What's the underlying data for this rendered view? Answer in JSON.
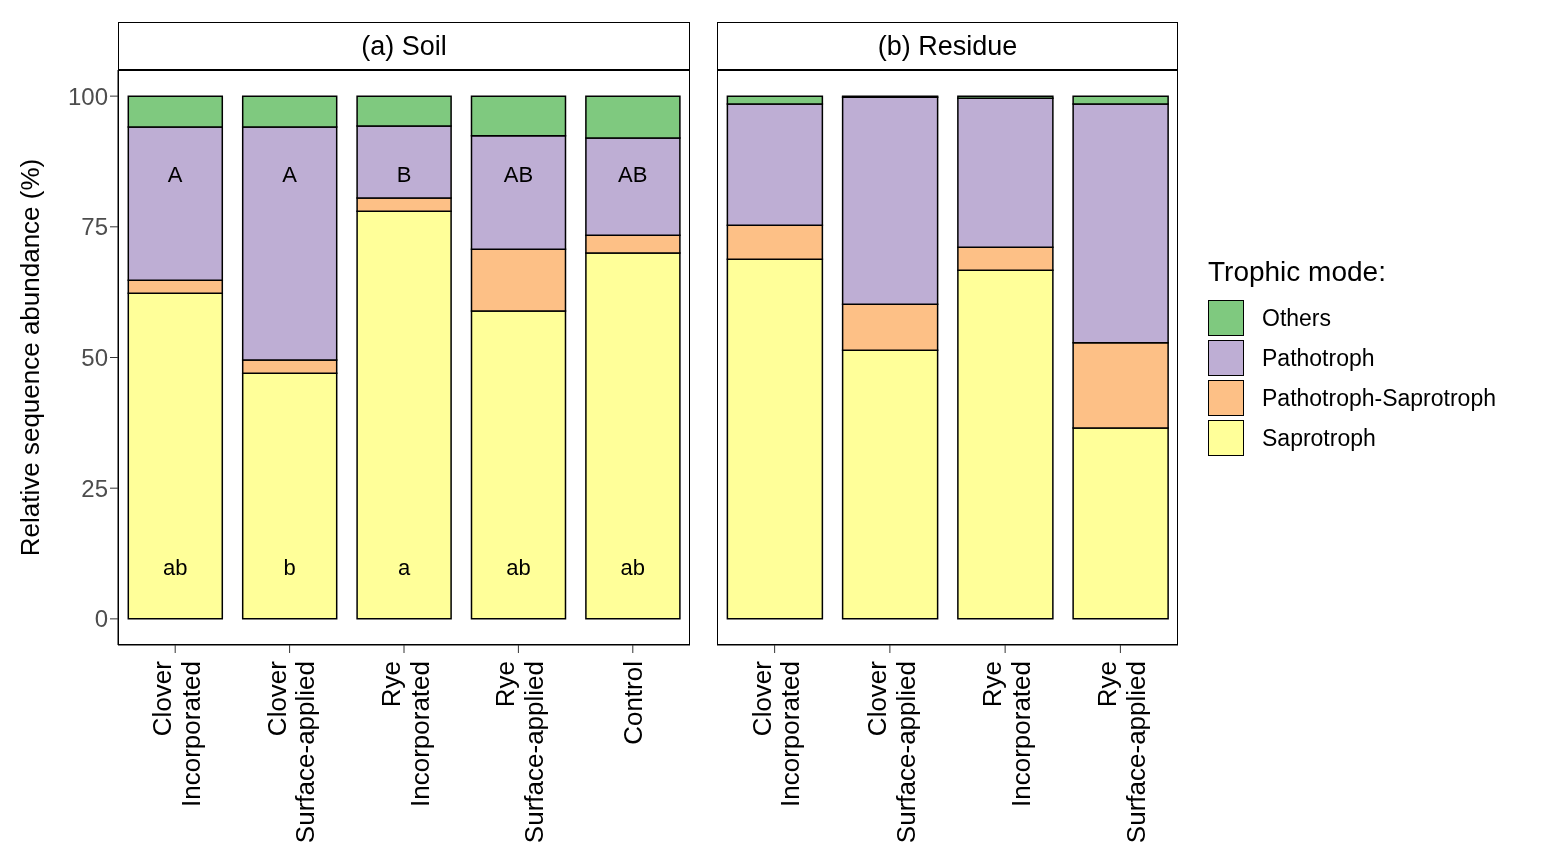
{
  "chart_data": [
    {
      "type": "bar",
      "title": "(a) Soil",
      "ylabel": "Relative sequence abundance (%)",
      "stacked": true,
      "grid": false,
      "legend": "right",
      "legend_title": "Trophic mode:",
      "categories": [
        "Clover Incorporated",
        "Clover Surface-applied",
        "Rye Incorporated",
        "Rye Surface-applied",
        "Control"
      ],
      "ylim": [
        -5,
        105
      ],
      "yticks": [
        0,
        25,
        50,
        75,
        100
      ],
      "series": [
        {
          "name": "Saprotroph",
          "color": "#ffff99",
          "values": [
            62.3,
            47.0,
            78.0,
            58.9,
            70.0
          ]
        },
        {
          "name": "Pathotroph-Saprotroph",
          "color": "#fdc086",
          "values": [
            2.5,
            2.5,
            2.5,
            11.8,
            3.4
          ]
        },
        {
          "name": "Pathotroph",
          "color": "#beaed4",
          "values": [
            29.3,
            44.6,
            13.8,
            21.7,
            18.6
          ]
        },
        {
          "name": "Others",
          "color": "#7fc97f",
          "values": [
            5.9,
            5.9,
            5.7,
            7.6,
            8.0
          ]
        }
      ],
      "annotations": [
        "A",
        "A",
        "B",
        "AB",
        "AB",
        "ab",
        "b",
        "a",
        "ab",
        "ab"
      ]
    },
    {
      "type": "bar",
      "title": "(b) Residue",
      "stacked": true,
      "grid": false,
      "tick_labels": "x",
      "categories": [
        "Clover Incorporated",
        "Clover Surface-applied",
        "Rye Incorporated",
        "Rye Surface-applied"
      ],
      "ylim": [
        -5,
        105
      ],
      "yticks": [
        0,
        25,
        50,
        75,
        100
      ],
      "series": [
        {
          "color": "#ffff99",
          "values": [
            68.8,
            51.4,
            66.7,
            36.5
          ]
        },
        {
          "color": "#fdc086",
          "values": [
            6.5,
            8.8,
            4.4,
            16.3
          ]
        },
        {
          "color": "#beaed4",
          "values": [
            23.2,
            39.6,
            28.5,
            45.7
          ]
        },
        {
          "color": "#7fc97f",
          "values": [
            1.5,
            0.2,
            0.4,
            1.5
          ]
        }
      ]
    }
  ]
}
